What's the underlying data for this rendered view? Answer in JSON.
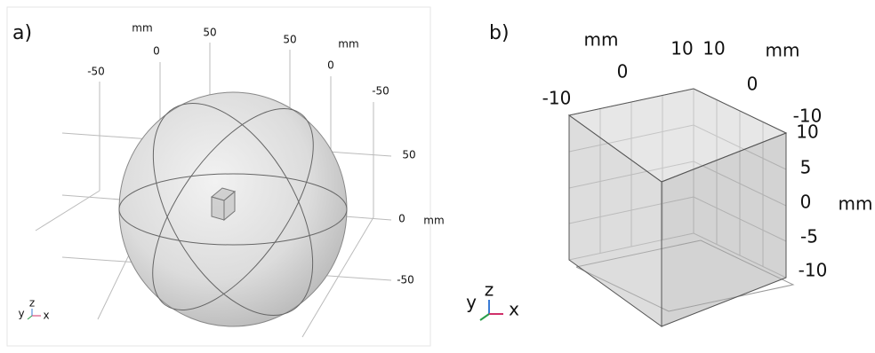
{
  "panels": [
    {
      "label": "a)",
      "labels": [
        "mm",
        "0",
        "50",
        "-50",
        "50",
        "mm",
        "0",
        "-50",
        "50",
        "0",
        "mm",
        "-50"
      ],
      "triad": [
        "y",
        "z",
        "x"
      ]
    },
    {
      "label": "b)",
      "labels": [
        "mm",
        "10",
        "10",
        "mm",
        "0",
        "0",
        "-10",
        "-10",
        "10",
        "5",
        "0",
        "mm",
        "-5",
        "-10"
      ],
      "triad": [
        "y",
        "z",
        "x"
      ]
    }
  ]
}
